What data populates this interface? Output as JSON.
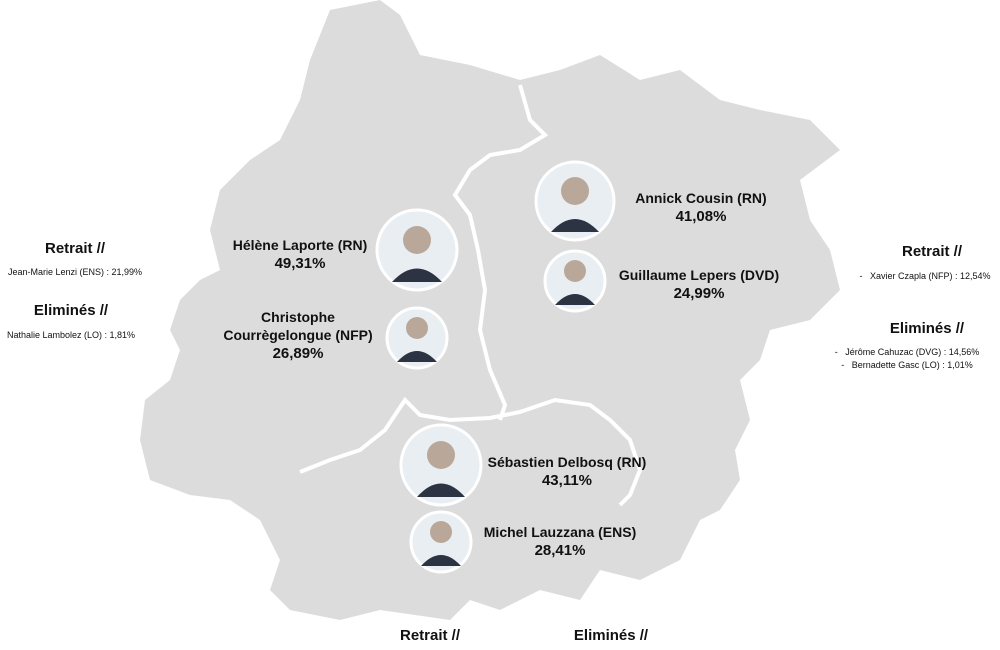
{
  "districts": [
    {
      "candidates": [
        {
          "name": "Hélène Laporte (RN)",
          "score": "49,31%"
        },
        {
          "name": "Christophe Courrègelongue (NFP)",
          "score": "26,89%"
        }
      ],
      "withdrawn": {
        "title": "Retrait //",
        "items": [
          "Jean-Marie Lenzi (ENS) : 21,99%"
        ]
      },
      "eliminated": {
        "title": "Eliminés //",
        "items": [
          "Nathalie Lambolez (LO) : 1,81%"
        ]
      }
    },
    {
      "candidates": [
        {
          "name": "Annick Cousin (RN)",
          "score": "41,08%"
        },
        {
          "name": "Guillaume Lepers (DVD)",
          "score": "24,99%"
        }
      ],
      "withdrawn": {
        "title": "Retrait //",
        "items": [
          "-   Xavier Czapla (NFP) : 12,54%"
        ]
      },
      "eliminated": {
        "title": "Eliminés //",
        "items": [
          "-   Jérôme Cahuzac (DVG) : 14,56%",
          "-   Bernadette Gasc (LO) : 1,01%"
        ]
      }
    },
    {
      "candidates": [
        {
          "name": "Sébastien Delbosq (RN)",
          "score": "43,11%"
        },
        {
          "name": "Michel Lauzzana (ENS)",
          "score": "28,41%"
        }
      ],
      "withdrawn": {
        "title": "Retrait //",
        "items": []
      },
      "eliminated": {
        "title": "Eliminés //",
        "items": []
      }
    }
  ]
}
